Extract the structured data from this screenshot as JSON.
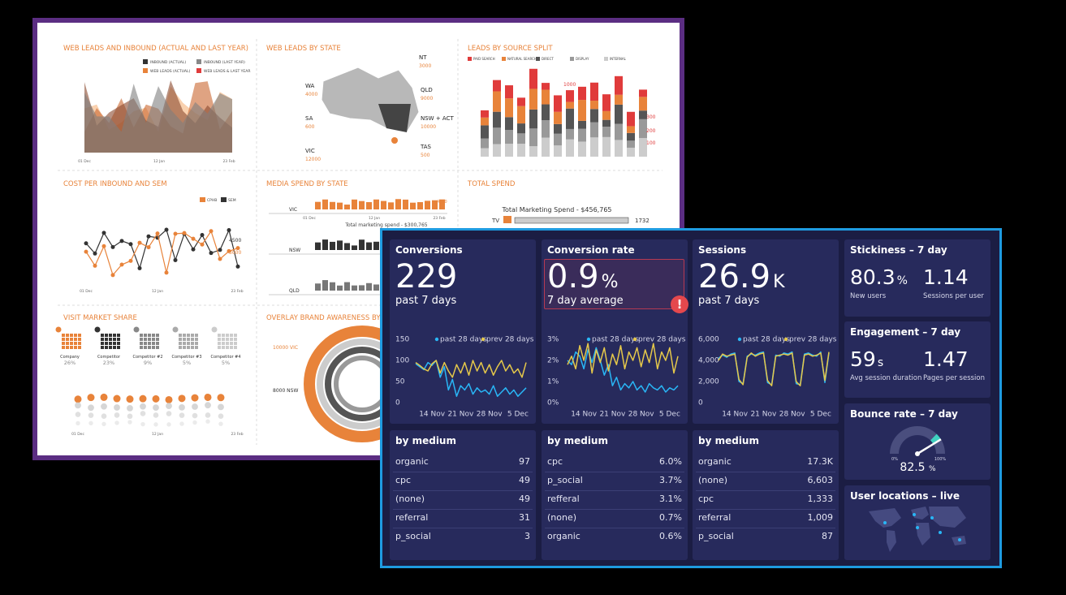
{
  "background": {
    "panels": [
      {
        "title": "WEB LEADS AND INBOUND (ACTUAL AND LAST YEAR)",
        "legend": [
          "INBOUND (ACTUAL)",
          "INBOUND (LAST YEAR)",
          "WEB LEADS (ACTUAL)",
          "WEB LEADS & LAST YEAR"
        ],
        "x_labels": [
          "01 Dec",
          "12 Jan",
          "23 Feb"
        ]
      },
      {
        "title": "WEB LEADS BY STATE",
        "states": [
          "WA",
          "SA",
          "VIC",
          "NT",
          "QLD",
          "NSW + ACT",
          "TAS"
        ],
        "figures": [
          "4000",
          "600",
          "12000",
          "3000",
          "9000",
          "10000",
          "500"
        ]
      },
      {
        "title": "LEADS BY SOURCE SPLIT",
        "legend": [
          "PAID SEARCH",
          "NATURAL SEARCH",
          "DIRECT",
          "DISPLAY",
          "INTERNAL"
        ],
        "labels": [
          "1000",
          "300",
          "200",
          "100"
        ]
      },
      {
        "title": "COST PER INBOUND AND SEM",
        "legend": [
          "CPHB",
          "SEM"
        ],
        "labels": [
          "4500",
          "3000"
        ],
        "x_labels": [
          "01 Dec",
          "12 Jan",
          "23 Feb"
        ]
      },
      {
        "title": "MEDIA SPEND BY STATE",
        "rows": [
          "VIC",
          "NSW",
          "QLD"
        ],
        "x_labels": [
          "01 Dec",
          "12 Jan",
          "23 Feb"
        ],
        "caption": "Total marketing spend - $300,765",
        "max": "4500"
      },
      {
        "title": "TOTAL SPEND",
        "caption": "Total Marketing Spend - $456,765",
        "row": "TV",
        "row_value": "1732"
      },
      {
        "title": "VISIT MARKET SHARE",
        "items": [
          {
            "name": "Company",
            "share": "26%"
          },
          {
            "name": "Competitor",
            "share": "23%"
          },
          {
            "name": "Competitor #2",
            "share": "9%"
          },
          {
            "name": "Competitor #3",
            "share": "5%"
          },
          {
            "name": "Competitor #4",
            "share": "5%"
          }
        ],
        "x_labels": [
          "01 Dec",
          "12 Jan",
          "23 Feb"
        ]
      },
      {
        "title": "OVERLAY BRAND AWARENESS BY ST",
        "labels": [
          "10000 VIC",
          "8000 NSW"
        ]
      }
    ]
  },
  "cards": [
    {
      "title": "Conversions",
      "value": 229,
      "caption": "past 7 days",
      "chart": {
        "type": "line",
        "xlim": [
          0,
          27
        ],
        "ylim": [
          0,
          150
        ],
        "yticks": [
          0,
          50,
          100,
          150
        ],
        "xticks": [
          {
            "value": 4,
            "label": "14 Nov"
          },
          {
            "value": 11,
            "label": "21 Nov"
          },
          {
            "value": 18,
            "label": "28 Nov"
          },
          {
            "value": 25,
            "label": "5 Dec"
          }
        ],
        "series": [
          {
            "name": "past 28 days",
            "color": "#29b6f6",
            "values": [
              92,
              85,
              78,
              95,
              88,
              100,
              60,
              85,
              30,
              55,
              15,
              40,
              30,
              45,
              20,
              35,
              25,
              30,
              20,
              40,
              15,
              25,
              35,
              20,
              30,
              15,
              25,
              35
            ]
          },
          {
            "name": "prev 28 days",
            "color": "#e5c84a",
            "values": [
              95,
              88,
              80,
              75,
              92,
              100,
              70,
              95,
              75,
              60,
              90,
              70,
              95,
              65,
              100,
              75,
              95,
              70,
              90,
              65,
              85,
              100,
              75,
              90,
              70,
              80,
              60,
              95
            ]
          }
        ]
      },
      "medium": {
        "title": "by medium",
        "rows": [
          [
            "organic",
            "97"
          ],
          [
            "cpc",
            "49"
          ],
          [
            "(none)",
            "49"
          ],
          [
            "referral",
            "31"
          ],
          [
            "p_social",
            "3"
          ]
        ]
      }
    },
    {
      "title": "Conversion rate",
      "value": 0.9,
      "unit": "%",
      "caption": "7 day average",
      "alert": "!",
      "chart": {
        "type": "line",
        "xlim": [
          0,
          27
        ],
        "ylim": [
          0,
          3
        ],
        "yticks": [
          {
            "value": 0,
            "label": "0%"
          },
          {
            "value": 1,
            "label": "1%"
          },
          {
            "value": 2,
            "label": "2%"
          },
          {
            "value": 3,
            "label": "3%"
          }
        ],
        "xticks": [
          {
            "value": 4,
            "label": "14 Nov"
          },
          {
            "value": 11,
            "label": "21 Nov"
          },
          {
            "value": 18,
            "label": "28 Nov"
          },
          {
            "value": 25,
            "label": "5 Dec"
          }
        ],
        "series": [
          {
            "name": "past 28 days",
            "color": "#29b6f6",
            "values": [
              2.0,
              1.8,
              2.4,
              2.2,
              1.6,
              2.5,
              1.9,
              2.6,
              2.0,
              1.3,
              1.8,
              0.8,
              1.2,
              0.6,
              0.9,
              0.7,
              1.0,
              0.6,
              0.8,
              0.5,
              0.9,
              0.7,
              0.6,
              0.8,
              0.5,
              0.7,
              0.6,
              0.8
            ]
          },
          {
            "name": "prev 28 days",
            "color": "#e5c84a",
            "values": [
              1.8,
              2.2,
              1.6,
              2.7,
              2.0,
              2.8,
              1.4,
              2.5,
              1.9,
              2.6,
              1.5,
              2.3,
              1.8,
              2.7,
              1.6,
              2.4,
              2.0,
              2.6,
              1.7,
              2.5,
              1.9,
              2.8,
              1.6,
              2.4,
              2.0,
              2.6,
              1.4,
              2.2
            ]
          }
        ]
      },
      "medium": {
        "title": "by medium",
        "rows": [
          [
            "cpc",
            "6.0%"
          ],
          [
            "p_social",
            "3.7%"
          ],
          [
            "refferal",
            "3.1%"
          ],
          [
            "(none)",
            "0.7%"
          ],
          [
            "organic",
            "0.6%"
          ]
        ]
      }
    },
    {
      "title": "Sessions",
      "value": 26.9,
      "unit": "K",
      "caption": "past 7 days",
      "chart": {
        "type": "line",
        "xlim": [
          0,
          27
        ],
        "ylim": [
          0,
          6000
        ],
        "yticks": [
          0,
          {
            "value": 2000,
            "label": "2,000"
          },
          {
            "value": 4000,
            "label": "4,000"
          },
          {
            "value": 6000,
            "label": "6,000"
          }
        ],
        "xticks": [
          {
            "value": 4,
            "label": "14 Nov"
          },
          {
            "value": 11,
            "label": "21 Nov"
          },
          {
            "value": 18,
            "label": "28 Nov"
          },
          {
            "value": 25,
            "label": "5 Dec"
          }
        ],
        "series": [
          {
            "name": "past 28 days",
            "color": "#29b6f6",
            "values": [
              4200,
              4500,
              4300,
              4600,
              4700,
              2000,
              1800,
              4400,
              4600,
              4500,
              4700,
              4800,
              1900,
              1700,
              4500,
              4400,
              4700,
              4600,
              4800,
              1800,
              1700,
              4600,
              4700,
              4500,
              4400,
              4800,
              1900,
              4700
            ]
          },
          {
            "name": "prev 28 days",
            "color": "#e5c84a",
            "values": [
              4000,
              4600,
              4400,
              4500,
              4600,
              2200,
              1700,
              4300,
              4700,
              4400,
              4600,
              4700,
              2100,
              1600,
              4400,
              4500,
              4600,
              4500,
              4700,
              2000,
              1600,
              4500,
              4600,
              4400,
              4500,
              4700,
              2100,
              4800
            ]
          }
        ]
      },
      "medium": {
        "title": "by medium",
        "rows": [
          [
            "organic",
            "17.3K"
          ],
          [
            "(none)",
            "6,603"
          ],
          [
            "cpc",
            "1,333"
          ],
          [
            "referral",
            "1,009"
          ],
          [
            "p_social",
            "87"
          ]
        ]
      }
    }
  ],
  "side": {
    "stickiness": {
      "title": "Stickiness – 7 day",
      "metrics": [
        {
          "value": "80.3",
          "unit": "%",
          "label": "New users"
        },
        {
          "value": "1.14",
          "label": "Sessions per user"
        }
      ]
    },
    "engagement": {
      "title": "Engagement – 7 day",
      "metrics": [
        {
          "value": "59",
          "unit": "s",
          "label": "Avg session duration"
        },
        {
          "value": "1.47",
          "label": "Pages per session"
        }
      ]
    },
    "bounce": {
      "title": "Bounce rate – 7 day",
      "value": 82.5,
      "unit": "%",
      "min_label": "0%",
      "max_label": "100%"
    },
    "locations": {
      "title": "User locations – live"
    }
  }
}
